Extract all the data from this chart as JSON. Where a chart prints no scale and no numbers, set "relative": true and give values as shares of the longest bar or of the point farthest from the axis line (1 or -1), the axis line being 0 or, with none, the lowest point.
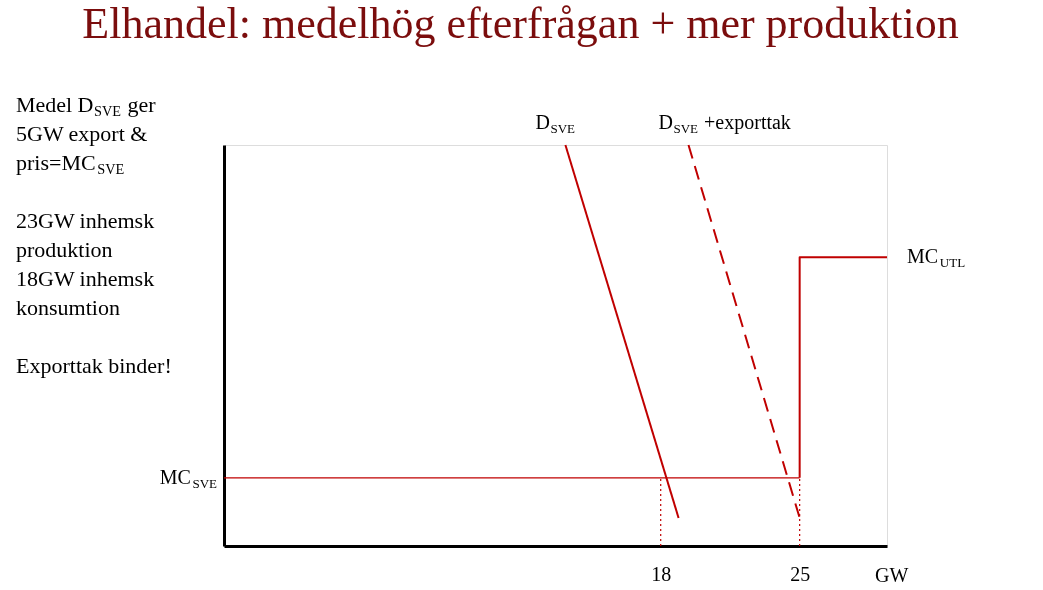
{
  "chart_data": {
    "type": "line",
    "title": "Elhandel: medelhög efterfrågan + mer produktion",
    "relative": true,
    "xlabel": "GW",
    "xlim": [
      -4,
      29.4
    ],
    "xticks": [
      18,
      25
    ],
    "grid": false,
    "marker": "none",
    "series": [
      {
        "name": "D$_{SVE}$",
        "color": "#c00000",
        "x": [
          13.2,
          18.9
        ],
        "values": [
          1,
          0.07
        ],
        "line_style": "solid"
      },
      {
        "name": "D$_{SVE}$ +exporttak",
        "color": "#c00000",
        "x": [
          19.4,
          25
        ],
        "values": [
          1,
          0.07
        ],
        "line_style": "dashed"
      },
      {
        "name": "MC$_{SVE}$",
        "color": "#c00000",
        "x": [
          -4,
          25
        ],
        "values": [
          0.17,
          0.17
        ],
        "line_style": "solid"
      },
      {
        "name": "MC$_{UTL}$",
        "color": "#c00000",
        "x": [
          25,
          25,
          29.4
        ],
        "values": [
          0.17,
          0.72,
          0.72
        ],
        "line_style": "solid"
      },
      {
        "color": "#c00000",
        "x": [
          18,
          18
        ],
        "values": [
          0,
          0.17
        ],
        "line_style": "dotted"
      },
      {
        "color": "#c00000",
        "x": [
          25,
          25
        ],
        "values": [
          0,
          0.17
        ],
        "line_style": "dotted"
      }
    ],
    "annotations": [
      "Medel D$_{SVE}$ ger\n5GW export &\npris=MC$_{SVE}$",
      "23GW inhemsk\nproduktion\n18GW inhemsk\nkonsumtion",
      "Exporttak binder!"
    ]
  }
}
